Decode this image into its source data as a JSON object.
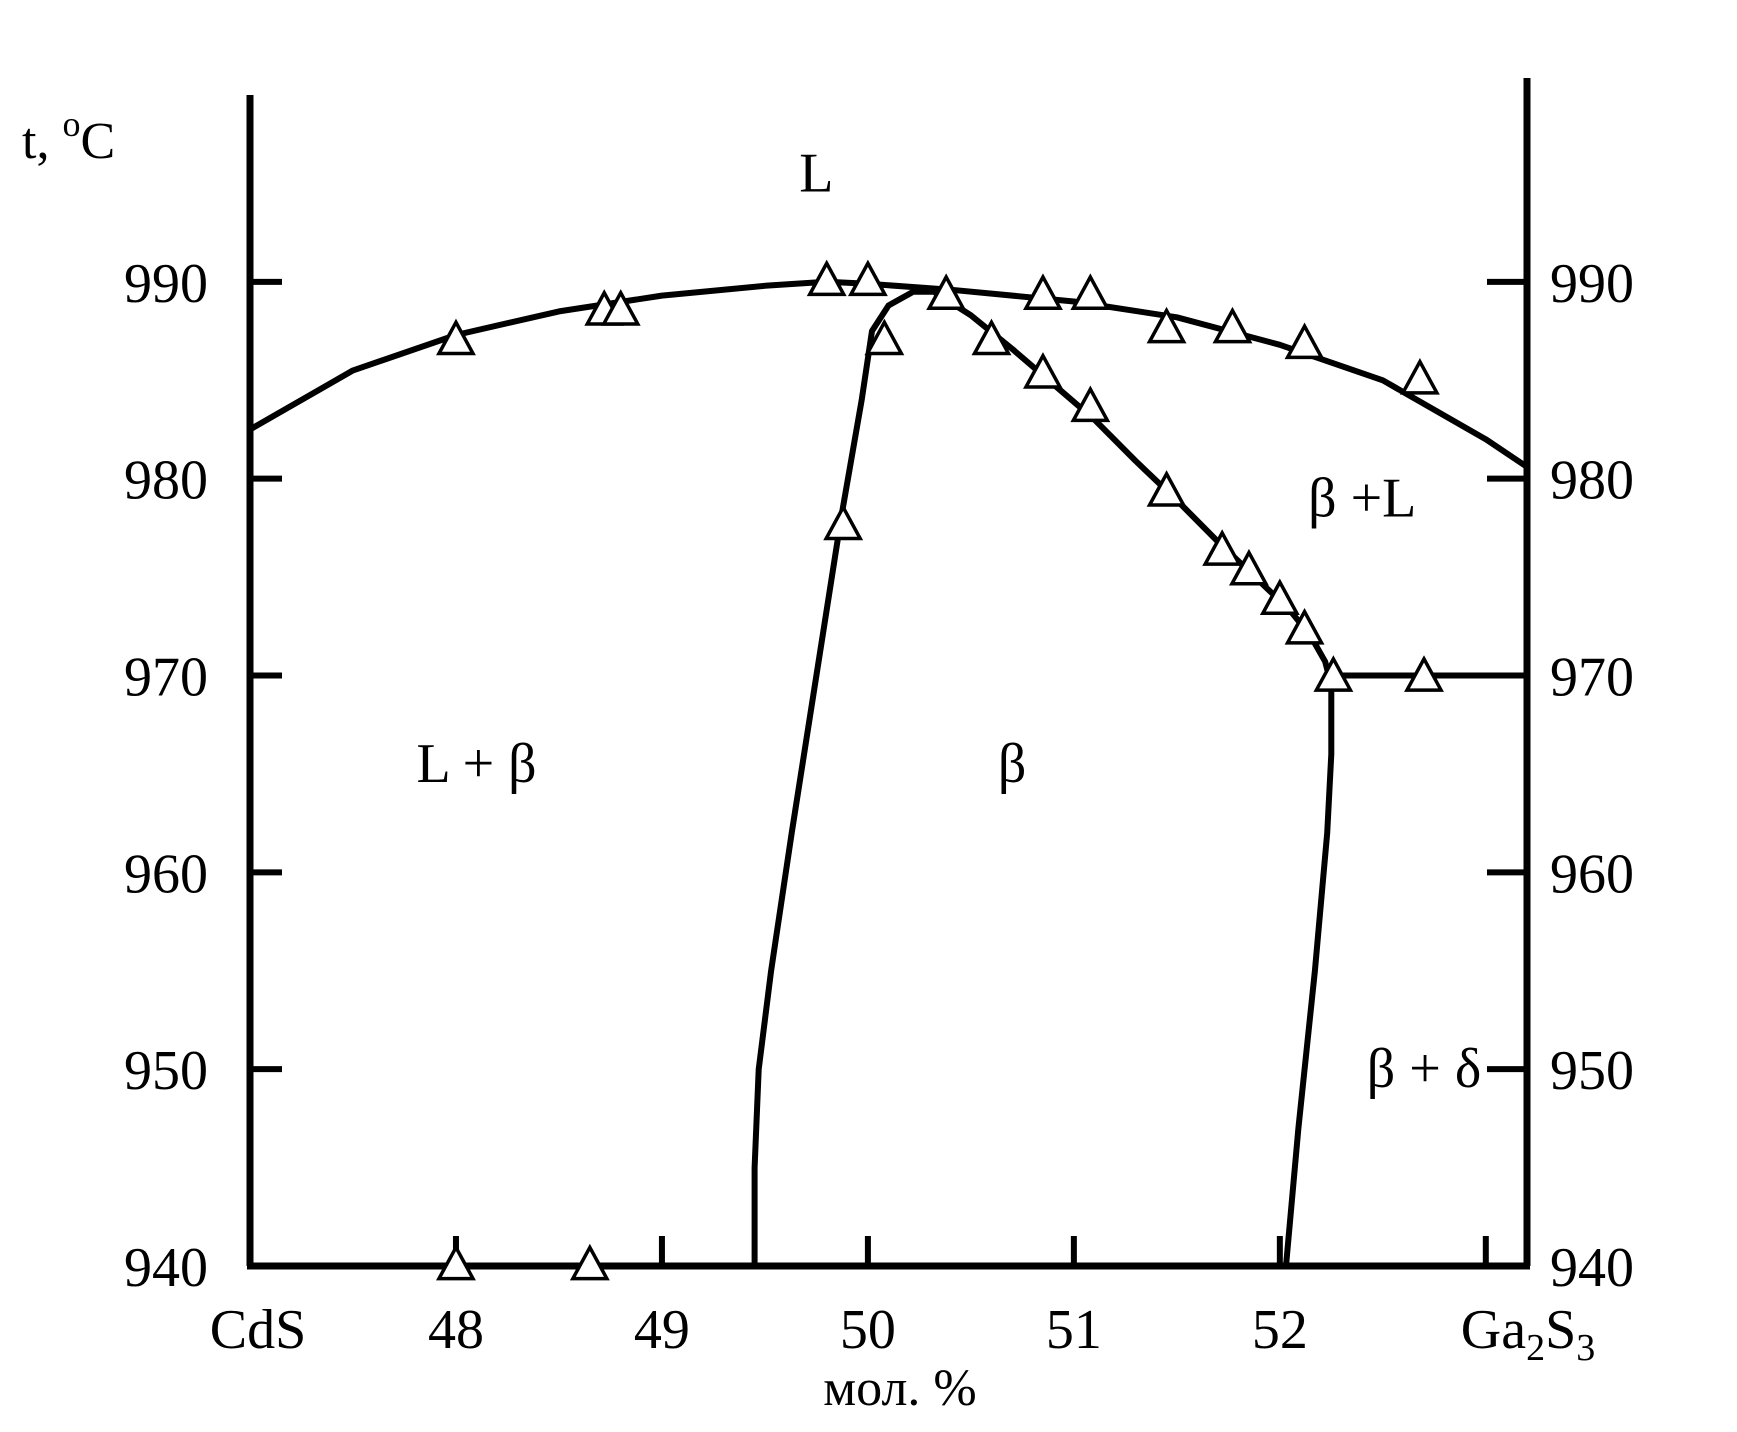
{
  "chart_data": {
    "type": "line",
    "title": "",
    "xlabel": "мол. %",
    "ylabel_prefix": "t, ",
    "ylabel_sup": "o",
    "ylabel_unit": "C",
    "x_left_label": "CdS",
    "x_right_label_parts": [
      "Ga",
      "2",
      "S",
      "3"
    ],
    "xlim": [
      47,
      53.2
    ],
    "ylim": [
      940,
      1000
    ],
    "x_ticks": [
      48,
      49,
      50,
      51,
      52
    ],
    "y_ticks": [
      940,
      950,
      960,
      970,
      980,
      990
    ],
    "grid": false,
    "series": [
      {
        "kind": "curve",
        "points": [
          [
            47.0,
            982.5
          ],
          [
            47.5,
            985.5
          ],
          [
            48.0,
            987.3
          ],
          [
            48.5,
            988.5
          ],
          [
            49.0,
            989.3
          ],
          [
            49.5,
            989.8
          ],
          [
            49.8,
            990.0
          ],
          [
            50.0,
            989.9
          ],
          [
            50.4,
            989.6
          ],
          [
            51.0,
            989.0
          ],
          [
            51.5,
            988.2
          ],
          [
            52.0,
            986.8
          ],
          [
            52.5,
            985.0
          ],
          [
            53.0,
            982.0
          ],
          [
            53.2,
            980.6
          ]
        ]
      },
      {
        "kind": "curve",
        "points": [
          [
            49.45,
            940.0
          ],
          [
            49.45,
            945.0
          ],
          [
            49.47,
            950.0
          ],
          [
            49.53,
            955.0
          ],
          [
            49.63,
            962.0
          ],
          [
            49.75,
            970.0
          ],
          [
            49.87,
            978.0
          ],
          [
            49.97,
            984.0
          ],
          [
            50.02,
            987.5
          ],
          [
            50.1,
            988.8
          ],
          [
            50.22,
            989.5
          ],
          [
            50.32,
            989.5
          ],
          [
            50.5,
            988.3
          ],
          [
            50.7,
            986.6
          ],
          [
            50.9,
            984.8
          ],
          [
            51.1,
            983.0
          ],
          [
            51.3,
            980.9
          ],
          [
            51.5,
            978.9
          ],
          [
            51.7,
            976.8
          ],
          [
            51.9,
            974.8
          ],
          [
            52.05,
            973.3
          ],
          [
            52.15,
            972.0
          ],
          [
            52.22,
            970.7
          ],
          [
            52.25,
            969.5
          ],
          [
            52.25,
            966.0
          ],
          [
            52.23,
            962.0
          ],
          [
            52.17,
            955.0
          ],
          [
            52.09,
            947.0
          ],
          [
            52.03,
            940.0
          ]
        ]
      },
      {
        "kind": "curve",
        "points": [
          [
            52.25,
            970.0
          ],
          [
            53.2,
            970.0
          ]
        ]
      },
      {
        "kind": "markers",
        "marker": "triangle",
        "points": [
          [
            48.0,
            987.0
          ],
          [
            48.72,
            988.5
          ],
          [
            48.8,
            988.5
          ],
          [
            49.8,
            990.0
          ],
          [
            50.0,
            990.0
          ],
          [
            50.38,
            989.3
          ],
          [
            50.08,
            987.0
          ],
          [
            49.88,
            977.6
          ],
          [
            50.6,
            987.0
          ],
          [
            50.85,
            985.3
          ],
          [
            51.08,
            983.6
          ],
          [
            51.45,
            979.3
          ],
          [
            51.72,
            976.3
          ],
          [
            51.85,
            975.3
          ],
          [
            52.0,
            973.8
          ],
          [
            52.12,
            972.3
          ],
          [
            52.26,
            969.9
          ],
          [
            52.7,
            969.9
          ],
          [
            50.85,
            989.3
          ],
          [
            51.08,
            989.3
          ],
          [
            51.45,
            987.6
          ],
          [
            51.77,
            987.6
          ],
          [
            52.12,
            986.8
          ],
          [
            52.68,
            985.0
          ],
          [
            48.0,
            940.0
          ],
          [
            48.65,
            940.0
          ]
        ]
      }
    ],
    "region_labels": [
      {
        "text": "L",
        "x": 49.75,
        "y": 995.5
      },
      {
        "text": "L + β",
        "x": 48.1,
        "y": 965.5
      },
      {
        "text": "β",
        "x": 50.7,
        "y": 965.5
      },
      {
        "text": "β +L",
        "x": 52.4,
        "y": 979.0
      },
      {
        "text": "β + δ",
        "x": 52.7,
        "y": 950.0
      }
    ]
  }
}
